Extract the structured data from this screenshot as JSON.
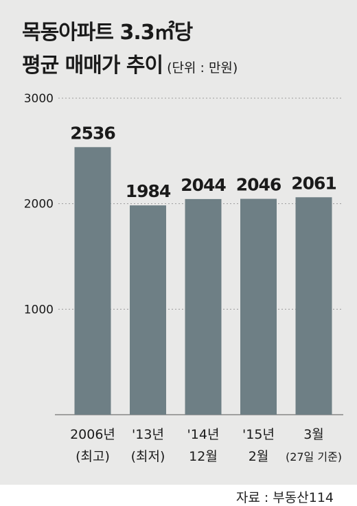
{
  "header": {
    "title_line1": "목동아파트 3.3㎡당",
    "title_line2": "평균 매매가 추이",
    "unit": "(단위 : 만원)"
  },
  "source": "자료 : 부동산114",
  "colors": {
    "background": "#e9e9e8",
    "bar": "#6e7f85",
    "text": "#1a1a1a",
    "grid": "#9a9a9a"
  },
  "chart_data": {
    "type": "bar",
    "categories": [
      [
        "2006년",
        "(최고)"
      ],
      [
        "'13년",
        "(최저)"
      ],
      [
        "'14년",
        "12월"
      ],
      [
        "'15년",
        "2월"
      ],
      [
        "3월",
        "(27일 기준)"
      ]
    ],
    "values": [
      2536,
      1984,
      2044,
      2046,
      2061
    ],
    "value_labels": [
      "2536",
      "1984",
      "2044",
      "2046",
      "2061"
    ],
    "yticks": [
      1000,
      2000,
      3000
    ],
    "ytick_labels": [
      "1000",
      "2000",
      "3000"
    ],
    "ylim": [
      0,
      3000
    ],
    "grid": true,
    "legend": "none"
  }
}
